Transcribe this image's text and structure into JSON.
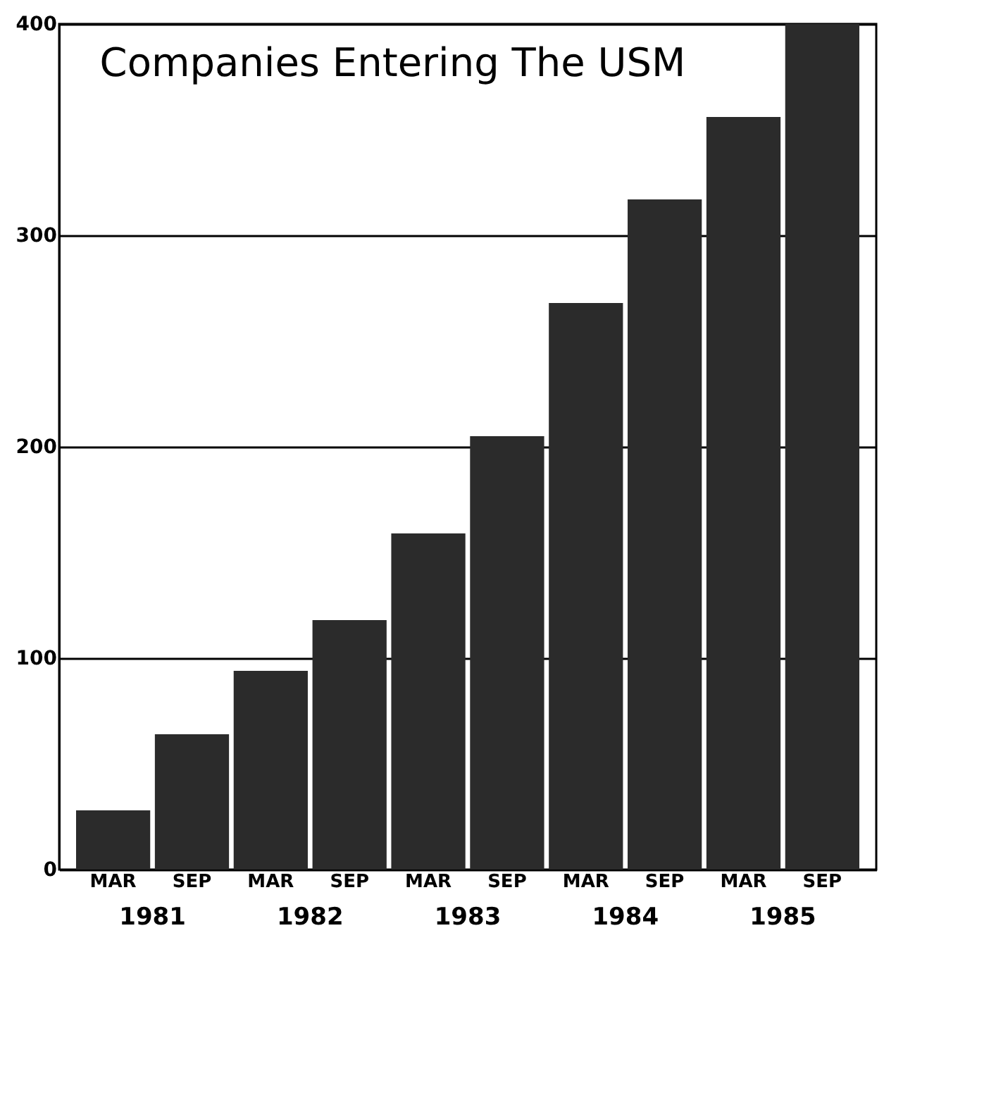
{
  "chart_data": {
    "type": "bar",
    "title": "Companies Entering The USM",
    "categories": [
      "MAR",
      "SEP",
      "MAR",
      "SEP",
      "MAR",
      "SEP",
      "MAR",
      "SEP",
      "MAR",
      "SEP"
    ],
    "values": [
      28,
      64,
      94,
      118,
      159,
      205,
      268,
      317,
      356,
      400
    ],
    "color": "#2b2b2b",
    "ylim": [
      0,
      400
    ],
    "yticks": [
      0,
      100,
      200,
      300,
      400
    ],
    "grid": "y",
    "annotations": [
      "1981",
      "1982",
      "1983",
      "1984",
      "1985"
    ]
  }
}
